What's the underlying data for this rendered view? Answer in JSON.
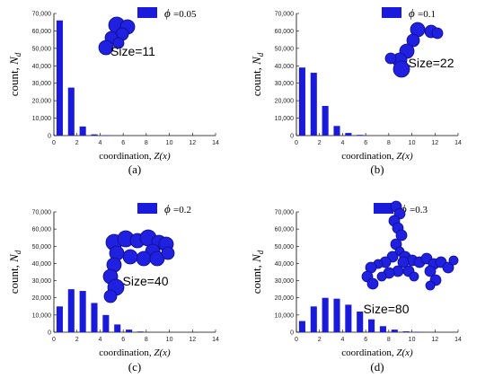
{
  "chart_data": [
    {
      "type": "bar",
      "panel": "(a)",
      "legend_symbol": "ϕ",
      "legend_value": "=0.05",
      "size_label": "Size=11",
      "xlabel_main": "coordination, ",
      "xlabel_var": "Z(x)",
      "ylabel_main": "count, ",
      "ylabel_var": "N",
      "ylabel_sub": "d",
      "x": [
        0,
        1,
        2,
        3,
        4
      ],
      "values": [
        66000,
        27500,
        5200,
        700,
        100
      ],
      "xlim": [
        0,
        14
      ],
      "ylim": [
        0,
        70000
      ],
      "xticks": [
        "0",
        "2",
        "4",
        "6",
        "8",
        "10",
        "12",
        "14"
      ],
      "yticks": [
        "0",
        "10,000",
        "20,000",
        "30,000",
        "40,000",
        "50,000",
        "60,000",
        "70,000"
      ],
      "color": "#1a1adb"
    },
    {
      "type": "bar",
      "panel": "(b)",
      "legend_symbol": "ϕ",
      "legend_value": "=0.1",
      "size_label": "Size=22",
      "xlabel_main": "coordination, ",
      "xlabel_var": "Z(x)",
      "ylabel_main": "count, ",
      "ylabel_var": "N",
      "ylabel_sub": "d",
      "x": [
        0,
        1,
        2,
        3,
        4,
        5
      ],
      "values": [
        39000,
        36000,
        17000,
        5500,
        1500,
        400
      ],
      "xlim": [
        0,
        14
      ],
      "ylim": [
        0,
        70000
      ],
      "xticks": [
        "0",
        "2",
        "4",
        "6",
        "8",
        "10",
        "12",
        "14"
      ],
      "yticks": [
        "0",
        "10,000",
        "20,000",
        "30,000",
        "40,000",
        "50,000",
        "60,000",
        "70,000"
      ],
      "color": "#1a1adb"
    },
    {
      "type": "bar",
      "panel": "(c)",
      "legend_symbol": "ϕ",
      "legend_value": "=0.2",
      "size_label": "Size=40",
      "xlabel_main": "coordination, ",
      "xlabel_var": "Z(x)",
      "ylabel_main": "count, ",
      "ylabel_var": "N",
      "ylabel_sub": "d",
      "x": [
        0,
        1,
        2,
        3,
        4,
        5,
        6,
        7
      ],
      "values": [
        15000,
        25000,
        24000,
        17000,
        10000,
        4500,
        1500,
        400
      ],
      "xlim": [
        0,
        14
      ],
      "ylim": [
        0,
        70000
      ],
      "xticks": [
        "0",
        "2",
        "4",
        "6",
        "8",
        "10",
        "12",
        "14"
      ],
      "yticks": [
        "0",
        "10,000",
        "20,000",
        "30,000",
        "40,000",
        "50,000",
        "60,000",
        "70,000"
      ],
      "color": "#1a1adb"
    },
    {
      "type": "bar",
      "panel": "(d)",
      "legend_symbol": "ϕ",
      "legend_value": "=0.3",
      "size_label": "Size=80",
      "xlabel_main": "coordination, ",
      "xlabel_var": "Z(x)",
      "ylabel_main": "count, ",
      "ylabel_var": "N",
      "ylabel_sub": "d",
      "x": [
        0,
        1,
        2,
        3,
        4,
        5,
        6,
        7,
        8,
        9,
        10
      ],
      "values": [
        6500,
        15000,
        20000,
        19500,
        16000,
        12000,
        7500,
        3500,
        1500,
        500,
        200
      ],
      "xlim": [
        0,
        14
      ],
      "ylim": [
        0,
        70000
      ],
      "xticks": [
        "0",
        "2",
        "4",
        "6",
        "8",
        "10",
        "12",
        "14"
      ],
      "yticks": [
        "0",
        "10,000",
        "20,000",
        "30,000",
        "40,000",
        "50,000",
        "60,000",
        "70,000"
      ],
      "color": "#1a1adb"
    }
  ]
}
